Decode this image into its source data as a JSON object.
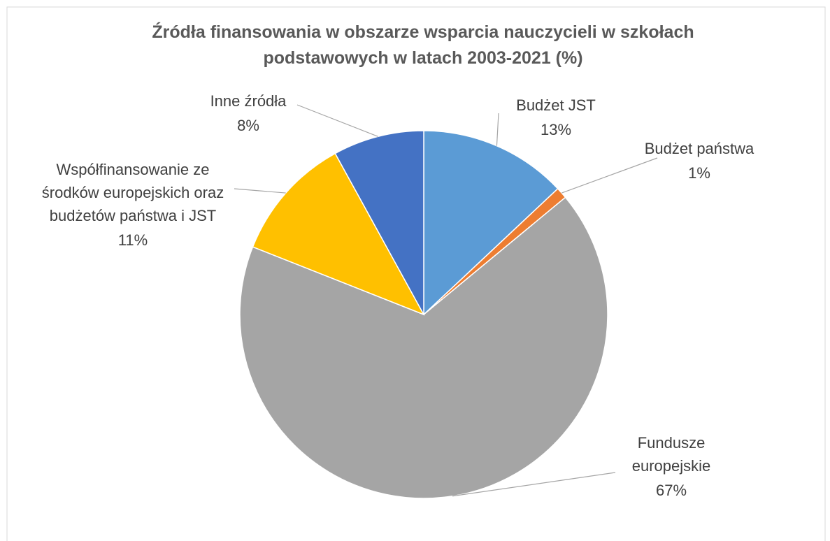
{
  "chart_data": {
    "type": "pie",
    "title": "Źródła finansowania w obszarze wsparcia nauczycieli w szkołach podstawowych w latach 2003-2021 (%)",
    "categories": [
      "Budżet JST",
      "Budżet państwa",
      "Fundusze europejskie",
      "Współfinansowanie ze środków europejskich oraz budżetów państwa i JST",
      "Inne źródła"
    ],
    "values": [
      13,
      1,
      67,
      11,
      8
    ],
    "value_labels": [
      "13%",
      "1%",
      "67%",
      "11%",
      "8%"
    ],
    "colors": [
      "#5b9bd5",
      "#ed7d31",
      "#a5a5a5",
      "#ffc000",
      "#4472c4"
    ]
  }
}
